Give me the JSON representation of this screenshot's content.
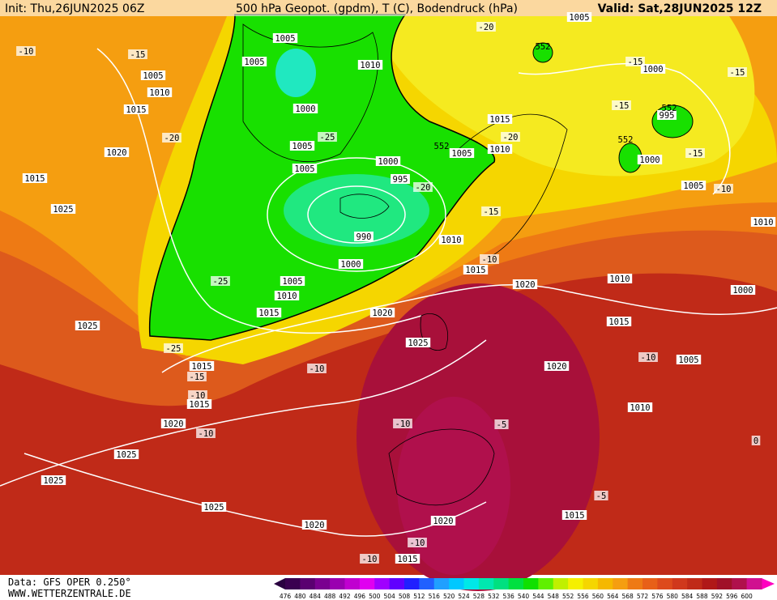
{
  "header": {
    "init": "Init: Thu,26JUN2025 06Z",
    "title": "500 hPa Geopot. (gpdm), T (C), Bodendruck (hPa)",
    "valid": "Valid: Sat,28JUN2025 12Z"
  },
  "map": {
    "pressure_labels": [
      "1005",
      "1005",
      "1010",
      "1000",
      "1005",
      "1005",
      "1000",
      "995",
      "990",
      "1000",
      "1005",
      "1010",
      "1015",
      "1020",
      "1025",
      "1015",
      "1015",
      "1020",
      "1025",
      "1025",
      "1025",
      "1020",
      "1020",
      "1015",
      "1015",
      "1010",
      "1020",
      "1015",
      "1010",
      "1020",
      "1015",
      "1010",
      "1005",
      "1010",
      "1015",
      "1005",
      "1000",
      "995",
      "1000",
      "1005",
      "1000",
      "1005",
      "1010",
      "1025",
      "1015",
      "1020",
      "1015",
      "1010",
      "1005",
      "1025"
    ],
    "temperature_labels": [
      "-10",
      "-15",
      "-20",
      "-25",
      "-20",
      "-15",
      "-10",
      "-25",
      "-25",
      "-15",
      "-10",
      "-10",
      "-10",
      "-10",
      "-5",
      "-10",
      "-10",
      "-5",
      "-10",
      "0",
      "-10",
      "-15",
      "-15",
      "-15",
      "-15",
      "-20",
      "-20"
    ],
    "geopotential_labels": [
      "552",
      "552",
      "552",
      "552"
    ]
  },
  "footer": {
    "source": "Data: GFS OPER 0.250°",
    "site": "WWW.WETTERZENTRALE.DE",
    "colorbar": [
      "476",
      "480",
      "484",
      "488",
      "492",
      "496",
      "500",
      "504",
      "508",
      "512",
      "516",
      "520",
      "524",
      "528",
      "532",
      "536",
      "540",
      "544",
      "548",
      "552",
      "556",
      "560",
      "564",
      "568",
      "572",
      "576",
      "580",
      "584",
      "588",
      "592",
      "596",
      "600"
    ]
  }
}
